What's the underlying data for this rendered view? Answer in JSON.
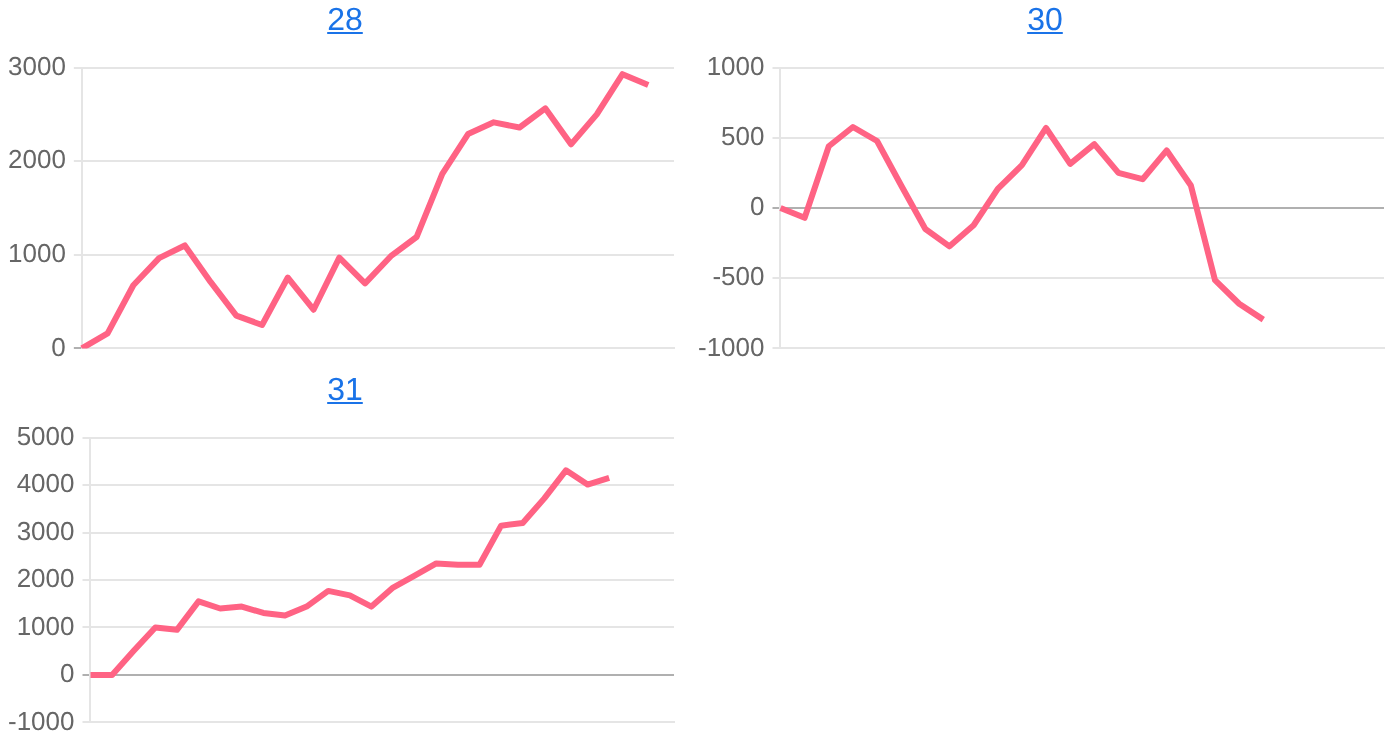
{
  "chart_data": [
    {
      "type": "line",
      "title": "28",
      "categories": [
        null,
        null,
        null,
        null,
        null,
        null,
        null,
        null,
        null,
        null,
        null,
        null,
        null,
        null,
        null,
        null,
        null,
        null,
        null,
        null,
        null,
        null,
        null,
        null
      ],
      "series": [
        {
          "color": "#ff6384",
          "values": [
            0,
            160,
            675,
            965,
            1100,
            710,
            350,
            250,
            757,
            413,
            970,
            695,
            985,
            1190,
            1865,
            2290,
            2415,
            2360,
            2565,
            2180,
            2500,
            2930,
            2815,
            null
          ]
        }
      ],
      "ylim": [
        0,
        3000
      ],
      "yticks": [
        0,
        1000,
        2000,
        3000
      ],
      "grid": "y",
      "tick_labels": "y",
      "legend": false,
      "marker": "none"
    },
    {
      "type": "line",
      "title": "30",
      "categories": [
        null,
        null,
        null,
        null,
        null,
        null,
        null,
        null,
        null,
        null,
        null,
        null,
        null,
        null,
        null,
        null,
        null,
        null,
        null,
        null,
        null,
        null,
        null,
        null,
        null,
        null
      ],
      "series": [
        {
          "color": "#ff6384",
          "values": [
            0,
            -70,
            440,
            577,
            477,
            160,
            -150,
            -273,
            -123,
            136,
            305,
            570,
            314,
            455,
            250,
            205,
            410,
            160,
            -514,
            -682,
            -795,
            null,
            null,
            null,
            null,
            null
          ]
        }
      ],
      "ylim": [
        -1000,
        1000
      ],
      "yticks": [
        -1000,
        -500,
        0,
        500,
        1000
      ],
      "grid": "y",
      "tick_labels": "y",
      "legend": false,
      "marker": "none"
    },
    {
      "type": "line",
      "title": "31",
      "categories": [
        null,
        null,
        null,
        null,
        null,
        null,
        null,
        null,
        null,
        null,
        null,
        null,
        null,
        null,
        null,
        null,
        null,
        null,
        null,
        null,
        null,
        null,
        null,
        null,
        null,
        null,
        null,
        null
      ],
      "series": [
        {
          "color": "#ff6384",
          "values": [
            0,
            0,
            510,
            1000,
            950,
            1550,
            1400,
            1440,
            1305,
            1250,
            1440,
            1770,
            1675,
            1440,
            1840,
            2090,
            2350,
            2320,
            2320,
            3145,
            3200,
            3720,
            4310,
            4010,
            4150,
            null,
            null,
            null
          ]
        }
      ],
      "ylim": [
        -1000,
        5000
      ],
      "yticks": [
        -1000,
        0,
        1000,
        2000,
        3000,
        4000,
        5000
      ],
      "grid": "y",
      "tick_labels": "y",
      "legend": false,
      "marker": "none"
    }
  ]
}
